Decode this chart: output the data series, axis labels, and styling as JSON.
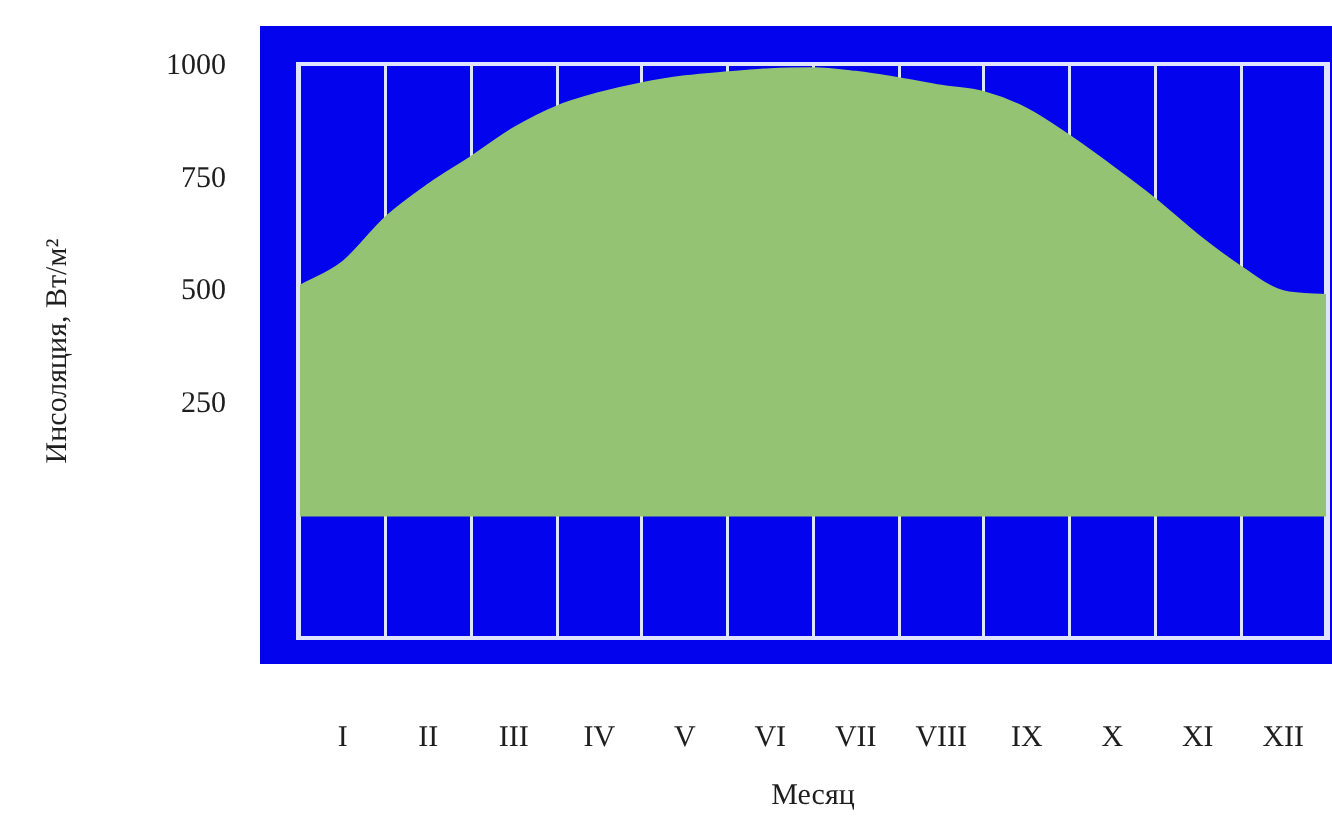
{
  "chart_data": {
    "type": "area",
    "xlabel": "Месяц",
    "ylabel": "Инсоляция, Вт/м²",
    "categories": [
      null,
      "I",
      null,
      "II",
      null,
      "III",
      null,
      "IV",
      null,
      "V",
      null,
      "VI",
      null,
      "VII",
      null,
      "VIII",
      null,
      "IX",
      null,
      "X",
      null,
      "XI",
      null,
      "XII",
      null
    ],
    "series": [
      {
        "color": "#94c373",
        "values": [
          512,
          565,
          664,
          737,
          798,
          862,
          910,
          940,
          962,
          977,
          986,
          993,
          995,
          987,
          973,
          956,
          942,
          905,
          845,
          777,
          705,
          625,
          555,
          500,
          492
        ]
      }
    ],
    "ylim": [
      -265,
      1000
    ],
    "yticks": [
      250,
      500,
      750,
      1000
    ],
    "grid": "x",
    "legend": false
  }
}
